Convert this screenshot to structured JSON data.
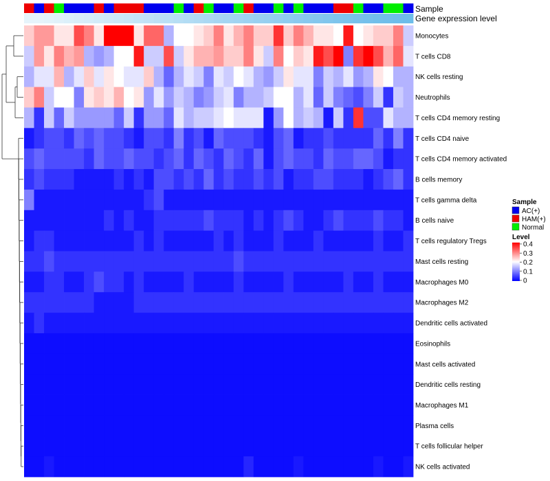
{
  "chart_data": {
    "type": "heatmap",
    "annotations": {
      "sample_label": "Sample",
      "gene_label": "Gene expression level",
      "samples": [
        "HAM(+)",
        "AC(+)",
        "HAM(+)",
        "Normal",
        "AC(+)",
        "AC(+)",
        "AC(+)",
        "HAM(+)",
        "AC(+)",
        "HAM(+)",
        "HAM(+)",
        "HAM(+)",
        "AC(+)",
        "AC(+)",
        "AC(+)",
        "Normal",
        "AC(+)",
        "HAM(+)",
        "Normal",
        "AC(+)",
        "AC(+)",
        "Normal",
        "HAM(+)",
        "AC(+)",
        "AC(+)",
        "Normal",
        "AC(+)",
        "Normal",
        "AC(+)",
        "AC(+)",
        "AC(+)",
        "HAM(+)",
        "HAM(+)",
        "Normal",
        "AC(+)",
        "AC(+)",
        "Normal",
        "Normal",
        "AC(+)"
      ],
      "gene_level_colors": [
        "#e6f4fb",
        "#e6f4fb",
        "#e3f3fb",
        "#e0f1fa",
        "#dcf0fa",
        "#d9eef9",
        "#d6edf9",
        "#d2ebf8",
        "#cfe9f8",
        "#cbe8f7",
        "#c8e6f7",
        "#c4e4f6",
        "#c1e2f6",
        "#bde0f5",
        "#bae0f5",
        "#b6def4",
        "#b2dcf4",
        "#afdaf3",
        "#abd8f3",
        "#a7d6f2",
        "#a4d5f2",
        "#a1d4f1",
        "#9dd2f1",
        "#99d0f0",
        "#96cff0",
        "#92ceef",
        "#8fccef",
        "#8bcaee",
        "#88c8ee",
        "#85c7ed",
        "#81c6ed",
        "#7ec4ec",
        "#7bc3ec",
        "#78c1eb",
        "#75c0eb",
        "#72bfea",
        "#70beea",
        "#6ebdea",
        "#6dbdea"
      ]
    },
    "rows": [
      "Monocytes",
      "T cells CD8",
      "NK cells resting",
      "Neutrophils",
      "T cells CD4 memory resting",
      "T cells CD4 naive",
      "T cells CD4 memory activated",
      "B cells memory",
      "T cells gamma delta",
      "B cells naive",
      "T cells regulatory  Tregs",
      "Mast cells resting",
      "Macrophages M0",
      "Macrophages M2",
      "Dendritic cells activated",
      "Eosinophils",
      "Mast cells activated",
      "Dendritic cells resting",
      "Macrophages M1",
      "Plasma cells",
      "T cells follicular helper",
      "NK cells activated"
    ],
    "values": [
      [
        0.24,
        0.28,
        0.28,
        0.22,
        0.22,
        0.34,
        0.3,
        0.22,
        0.4,
        0.4,
        0.4,
        0.22,
        0.32,
        0.32,
        0.14,
        0.2,
        0.2,
        0.22,
        0.24,
        0.3,
        0.22,
        0.26,
        0.3,
        0.24,
        0.24,
        0.36,
        0.24,
        0.3,
        0.26,
        0.22,
        0.22,
        0.2,
        0.38,
        0.2,
        0.22,
        0.24,
        0.24,
        0.3,
        0.16
      ],
      [
        0.16,
        0.28,
        0.22,
        0.3,
        0.26,
        0.28,
        0.14,
        0.12,
        0.14,
        0.2,
        0.2,
        0.38,
        0.16,
        0.16,
        0.34,
        0.16,
        0.22,
        0.26,
        0.26,
        0.28,
        0.24,
        0.24,
        0.3,
        0.22,
        0.16,
        0.3,
        0.2,
        0.24,
        0.22,
        0.38,
        0.34,
        0.4,
        0.1,
        0.36,
        0.4,
        0.34,
        0.26,
        0.32,
        0.18
      ],
      [
        0.14,
        0.18,
        0.18,
        0.26,
        0.14,
        0.18,
        0.24,
        0.18,
        0.22,
        0.2,
        0.18,
        0.18,
        0.24,
        0.14,
        0.08,
        0.14,
        0.18,
        0.16,
        0.1,
        0.18,
        0.16,
        0.2,
        0.18,
        0.14,
        0.12,
        0.16,
        0.22,
        0.18,
        0.18,
        0.1,
        0.16,
        0.14,
        0.18,
        0.12,
        0.14,
        0.22,
        0.2,
        0.14,
        0.14
      ],
      [
        0.24,
        0.3,
        0.16,
        0.2,
        0.2,
        0.1,
        0.22,
        0.24,
        0.22,
        0.26,
        0.2,
        0.22,
        0.12,
        0.18,
        0.12,
        0.16,
        0.14,
        0.1,
        0.12,
        0.16,
        0.18,
        0.1,
        0.14,
        0.14,
        0.16,
        0.2,
        0.2,
        0.14,
        0.18,
        0.08,
        0.16,
        0.1,
        0.08,
        0.06,
        0.1,
        0.16,
        0.04,
        0.16,
        0.14
      ],
      [
        0.14,
        0.04,
        0.16,
        0.08,
        0.16,
        0.12,
        0.12,
        0.12,
        0.12,
        0.08,
        0.16,
        0.04,
        0.12,
        0.12,
        0.08,
        0.18,
        0.14,
        0.16,
        0.16,
        0.18,
        0.2,
        0.18,
        0.18,
        0.18,
        0.02,
        0.12,
        0.2,
        0.14,
        0.16,
        0.14,
        0.02,
        0.16,
        0.04,
        0.36,
        0.06,
        0.06,
        0.18,
        0.14,
        0.14
      ],
      [
        0.02,
        0.04,
        0.06,
        0.06,
        0.04,
        0.08,
        0.06,
        0.08,
        0.06,
        0.06,
        0.04,
        0.02,
        0.06,
        0.06,
        0.04,
        0.1,
        0.04,
        0.06,
        0.02,
        0.08,
        0.06,
        0.06,
        0.06,
        0.04,
        0.02,
        0.06,
        0.08,
        0.02,
        0.04,
        0.04,
        0.06,
        0.04,
        0.04,
        0.04,
        0.04,
        0.08,
        0.04,
        0.1,
        0.04
      ],
      [
        0.06,
        0.08,
        0.06,
        0.06,
        0.06,
        0.06,
        0.04,
        0.08,
        0.06,
        0.06,
        0.08,
        0.06,
        0.06,
        0.04,
        0.06,
        0.08,
        0.04,
        0.08,
        0.06,
        0.04,
        0.08,
        0.06,
        0.04,
        0.08,
        0.02,
        0.06,
        0.08,
        0.06,
        0.06,
        0.04,
        0.08,
        0.06,
        0.06,
        0.08,
        0.08,
        0.06,
        0.02,
        0.04,
        0.04
      ],
      [
        0.04,
        0.06,
        0.04,
        0.04,
        0.04,
        0.02,
        0.02,
        0.02,
        0.02,
        0.04,
        0.02,
        0.04,
        0.02,
        0.06,
        0.06,
        0.04,
        0.06,
        0.04,
        0.08,
        0.04,
        0.06,
        0.04,
        0.04,
        0.06,
        0.04,
        0.06,
        0.02,
        0.04,
        0.04,
        0.06,
        0.06,
        0.04,
        0.04,
        0.04,
        0.02,
        0.04,
        0.06,
        0.08,
        0.04
      ],
      [
        0.1,
        0.02,
        0.02,
        0.02,
        0.02,
        0.02,
        0.02,
        0.02,
        0.02,
        0.02,
        0.02,
        0.02,
        0.04,
        0.06,
        0.02,
        0.02,
        0.02,
        0.02,
        0.02,
        0.02,
        0.02,
        0.02,
        0.02,
        0.02,
        0.02,
        0.02,
        0.02,
        0.02,
        0.02,
        0.02,
        0.02,
        0.02,
        0.02,
        0.02,
        0.02,
        0.02,
        0.02,
        0.02,
        0.02
      ],
      [
        0.02,
        0.02,
        0.02,
        0.02,
        0.02,
        0.02,
        0.02,
        0.02,
        0.04,
        0.02,
        0.04,
        0.02,
        0.02,
        0.04,
        0.04,
        0.04,
        0.04,
        0.04,
        0.06,
        0.04,
        0.04,
        0.04,
        0.02,
        0.04,
        0.02,
        0.04,
        0.06,
        0.04,
        0.02,
        0.02,
        0.04,
        0.06,
        0.04,
        0.04,
        0.04,
        0.06,
        0.04,
        0.04,
        0.02
      ],
      [
        0.02,
        0.04,
        0.04,
        0.02,
        0.02,
        0.02,
        0.02,
        0.02,
        0.02,
        0.02,
        0.02,
        0.04,
        0.02,
        0.04,
        0.02,
        0.02,
        0.02,
        0.02,
        0.02,
        0.04,
        0.02,
        0.04,
        0.02,
        0.02,
        0.02,
        0.04,
        0.02,
        0.02,
        0.02,
        0.04,
        0.02,
        0.02,
        0.02,
        0.02,
        0.02,
        0.04,
        0.02,
        0.02,
        0.04
      ],
      [
        0.04,
        0.04,
        0.06,
        0.04,
        0.04,
        0.04,
        0.04,
        0.04,
        0.04,
        0.04,
        0.04,
        0.04,
        0.04,
        0.04,
        0.04,
        0.04,
        0.04,
        0.04,
        0.04,
        0.04,
        0.04,
        0.06,
        0.04,
        0.04,
        0.04,
        0.04,
        0.04,
        0.04,
        0.04,
        0.04,
        0.04,
        0.04,
        0.04,
        0.04,
        0.04,
        0.04,
        0.04,
        0.04,
        0.04
      ],
      [
        0.02,
        0.02,
        0.04,
        0.04,
        0.02,
        0.02,
        0.04,
        0.06,
        0.04,
        0.04,
        0.02,
        0.04,
        0.02,
        0.02,
        0.02,
        0.02,
        0.04,
        0.02,
        0.02,
        0.02,
        0.02,
        0.04,
        0.02,
        0.02,
        0.02,
        0.02,
        0.04,
        0.02,
        0.02,
        0.02,
        0.02,
        0.02,
        0.04,
        0.02,
        0.02,
        0.04,
        0.02,
        0.02,
        0.02
      ],
      [
        0.04,
        0.04,
        0.04,
        0.04,
        0.04,
        0.04,
        0.04,
        0.02,
        0.02,
        0.02,
        0.02,
        0.04,
        0.04,
        0.04,
        0.04,
        0.04,
        0.04,
        0.04,
        0.04,
        0.04,
        0.04,
        0.04,
        0.04,
        0.04,
        0.04,
        0.04,
        0.04,
        0.04,
        0.04,
        0.04,
        0.04,
        0.04,
        0.04,
        0.04,
        0.04,
        0.04,
        0.04,
        0.04,
        0.04
      ],
      [
        0.02,
        0.04,
        0.02,
        0.02,
        0.02,
        0.02,
        0.02,
        0.02,
        0.02,
        0.02,
        0.02,
        0.02,
        0.02,
        0.02,
        0.02,
        0.02,
        0.02,
        0.02,
        0.02,
        0.02,
        0.02,
        0.02,
        0.02,
        0.02,
        0.02,
        0.02,
        0.02,
        0.02,
        0.02,
        0.02,
        0.02,
        0.02,
        0.02,
        0.02,
        0.02,
        0.02,
        0.02,
        0.02,
        0.02
      ],
      [
        0.01,
        0.01,
        0.01,
        0.01,
        0.01,
        0.01,
        0.01,
        0.01,
        0.01,
        0.01,
        0.01,
        0.01,
        0.01,
        0.01,
        0.01,
        0.01,
        0.01,
        0.01,
        0.01,
        0.01,
        0.01,
        0.01,
        0.01,
        0.01,
        0.01,
        0.01,
        0.01,
        0.01,
        0.01,
        0.01,
        0.01,
        0.01,
        0.01,
        0.01,
        0.01,
        0.01,
        0.01,
        0.01,
        0.01
      ],
      [
        0.01,
        0.01,
        0.01,
        0.01,
        0.01,
        0.01,
        0.01,
        0.01,
        0.01,
        0.01,
        0.01,
        0.01,
        0.01,
        0.01,
        0.01,
        0.01,
        0.01,
        0.01,
        0.01,
        0.01,
        0.01,
        0.01,
        0.01,
        0.01,
        0.01,
        0.01,
        0.01,
        0.01,
        0.01,
        0.01,
        0.01,
        0.01,
        0.01,
        0.01,
        0.01,
        0.01,
        0.01,
        0.01,
        0.01
      ],
      [
        0.01,
        0.01,
        0.01,
        0.01,
        0.01,
        0.01,
        0.01,
        0.01,
        0.01,
        0.01,
        0.01,
        0.01,
        0.01,
        0.01,
        0.01,
        0.01,
        0.01,
        0.01,
        0.01,
        0.01,
        0.01,
        0.01,
        0.01,
        0.01,
        0.01,
        0.01,
        0.01,
        0.01,
        0.01,
        0.01,
        0.01,
        0.01,
        0.01,
        0.01,
        0.01,
        0.01,
        0.01,
        0.01,
        0.01
      ],
      [
        0.01,
        0.01,
        0.01,
        0.01,
        0.01,
        0.01,
        0.01,
        0.01,
        0.01,
        0.01,
        0.01,
        0.01,
        0.01,
        0.01,
        0.01,
        0.01,
        0.01,
        0.01,
        0.01,
        0.01,
        0.01,
        0.01,
        0.01,
        0.01,
        0.01,
        0.01,
        0.01,
        0.01,
        0.01,
        0.01,
        0.01,
        0.01,
        0.01,
        0.01,
        0.01,
        0.01,
        0.01,
        0.01,
        0.01
      ],
      [
        0.01,
        0.01,
        0.01,
        0.01,
        0.01,
        0.01,
        0.01,
        0.01,
        0.01,
        0.01,
        0.01,
        0.01,
        0.01,
        0.01,
        0.01,
        0.01,
        0.01,
        0.01,
        0.01,
        0.01,
        0.01,
        0.01,
        0.01,
        0.01,
        0.01,
        0.01,
        0.01,
        0.01,
        0.01,
        0.01,
        0.01,
        0.01,
        0.01,
        0.01,
        0.01,
        0.01,
        0.01,
        0.01,
        0.01
      ],
      [
        0.01,
        0.01,
        0.01,
        0.01,
        0.01,
        0.01,
        0.01,
        0.01,
        0.01,
        0.01,
        0.01,
        0.01,
        0.01,
        0.01,
        0.01,
        0.01,
        0.01,
        0.01,
        0.01,
        0.01,
        0.01,
        0.01,
        0.01,
        0.01,
        0.01,
        0.01,
        0.01,
        0.01,
        0.01,
        0.01,
        0.01,
        0.01,
        0.01,
        0.01,
        0.01,
        0.01,
        0.01,
        0.01,
        0.01
      ],
      [
        0.01,
        0.01,
        0.02,
        0.01,
        0.01,
        0.01,
        0.01,
        0.01,
        0.01,
        0.01,
        0.01,
        0.01,
        0.01,
        0.01,
        0.01,
        0.01,
        0.01,
        0.01,
        0.01,
        0.01,
        0.01,
        0.01,
        0.03,
        0.01,
        0.01,
        0.01,
        0.01,
        0.02,
        0.01,
        0.01,
        0.01,
        0.01,
        0.01,
        0.01,
        0.01,
        0.02,
        0.01,
        0.01,
        0.02
      ]
    ],
    "legend": {
      "sample_title": "Sample",
      "groups": [
        {
          "name": "AC(+)",
          "color": "#0000ee"
        },
        {
          "name": "HAM(+)",
          "color": "#ee0000"
        },
        {
          "name": "Normal",
          "color": "#00ee00"
        }
      ],
      "level_title": "Level",
      "level_ticks": [
        "0.4",
        "0.3",
        "0.2",
        "0.1",
        "0"
      ],
      "level_range": [
        0,
        0.4
      ]
    },
    "colors": {
      "low": "#0000ff",
      "mid": "#ffffff",
      "high": "#ff0000"
    }
  }
}
